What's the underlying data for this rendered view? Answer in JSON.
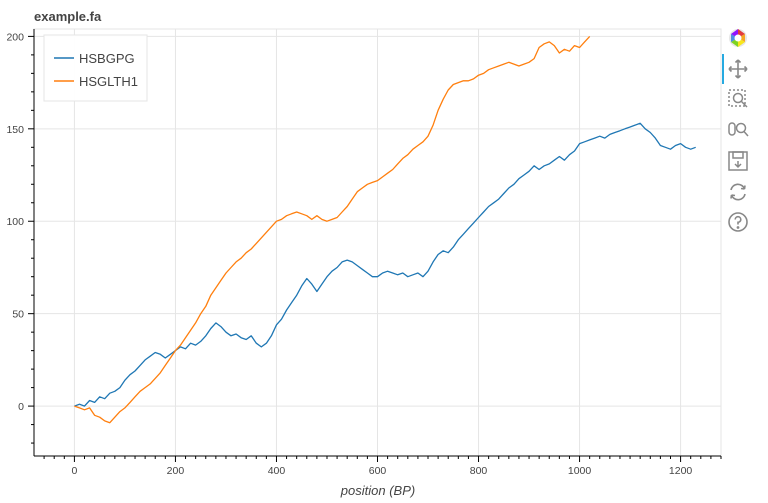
{
  "title": "example.fa",
  "toolbar": {
    "tools": [
      {
        "name": "bokeh-logo-icon"
      },
      {
        "name": "pan-tool-icon"
      },
      {
        "name": "box-zoom-tool-icon"
      },
      {
        "name": "wheel-zoom-tool-icon"
      },
      {
        "name": "save-tool-icon"
      },
      {
        "name": "reset-tool-icon"
      },
      {
        "name": "help-tool-icon"
      }
    ]
  },
  "chart_data": {
    "type": "line",
    "title": "example.fa",
    "xlabel": "position (BP)",
    "ylabel": "",
    "xlim": [
      -80,
      1280
    ],
    "ylim": [
      -27,
      204
    ],
    "xticks": [
      0,
      200,
      400,
      600,
      800,
      1000,
      1200
    ],
    "yticks": [
      0,
      50,
      100,
      150,
      200
    ],
    "grid": true,
    "legend_position": "top-left",
    "series": [
      {
        "name": "HSBGPG",
        "color": "#1f77b4",
        "x": [
          0,
          10,
          20,
          30,
          40,
          50,
          60,
          70,
          80,
          90,
          100,
          110,
          120,
          130,
          140,
          150,
          160,
          170,
          180,
          190,
          200,
          210,
          220,
          230,
          240,
          250,
          260,
          270,
          280,
          290,
          300,
          310,
          320,
          330,
          340,
          350,
          360,
          370,
          380,
          390,
          400,
          410,
          420,
          430,
          440,
          450,
          460,
          470,
          480,
          490,
          500,
          510,
          520,
          530,
          540,
          550,
          560,
          570,
          580,
          590,
          600,
          610,
          620,
          630,
          640,
          650,
          660,
          670,
          680,
          690,
          700,
          710,
          720,
          730,
          740,
          750,
          760,
          770,
          780,
          790,
          800,
          810,
          820,
          830,
          840,
          850,
          860,
          870,
          880,
          890,
          900,
          910,
          920,
          930,
          940,
          950,
          960,
          970,
          980,
          990,
          1000,
          1010,
          1020,
          1030,
          1040,
          1050,
          1060,
          1070,
          1080,
          1090,
          1100,
          1110,
          1120,
          1130,
          1140,
          1150,
          1160,
          1170,
          1180,
          1190,
          1200,
          1210,
          1220,
          1230
        ],
        "y": [
          0,
          1,
          0,
          3,
          2,
          5,
          4,
          7,
          8,
          10,
          14,
          17,
          19,
          22,
          25,
          27,
          29,
          28,
          26,
          28,
          30,
          32,
          31,
          34,
          33,
          35,
          38,
          42,
          45,
          43,
          40,
          38,
          39,
          37,
          36,
          38,
          34,
          32,
          34,
          38,
          44,
          47,
          52,
          56,
          60,
          65,
          69,
          66,
          62,
          66,
          70,
          73,
          75,
          78,
          79,
          78,
          76,
          74,
          72,
          70,
          70,
          72,
          73,
          72,
          71,
          72,
          70,
          71,
          72,
          70,
          73,
          78,
          82,
          84,
          83,
          86,
          90,
          93,
          96,
          99,
          102,
          105,
          108,
          110,
          112,
          115,
          118,
          120,
          123,
          125,
          127,
          130,
          128,
          130,
          131,
          133,
          135,
          133,
          136,
          138,
          142,
          143,
          144,
          145,
          146,
          145,
          147,
          148,
          149,
          150,
          151,
          152,
          153,
          150,
          148,
          145,
          141,
          140,
          139,
          141,
          142,
          140,
          139,
          140
        ]
      },
      {
        "name": "HSGLTH1",
        "color": "#ff7f0e",
        "x": [
          0,
          10,
          20,
          30,
          40,
          50,
          60,
          70,
          80,
          90,
          100,
          110,
          120,
          130,
          140,
          150,
          160,
          170,
          180,
          190,
          200,
          210,
          220,
          230,
          240,
          250,
          260,
          270,
          280,
          290,
          300,
          310,
          320,
          330,
          340,
          350,
          360,
          370,
          380,
          390,
          400,
          410,
          420,
          430,
          440,
          450,
          460,
          470,
          480,
          490,
          500,
          510,
          520,
          530,
          540,
          550,
          560,
          570,
          580,
          590,
          600,
          610,
          620,
          630,
          640,
          650,
          660,
          670,
          680,
          690,
          700,
          710,
          720,
          730,
          740,
          750,
          760,
          770,
          780,
          790,
          800,
          810,
          820,
          830,
          840,
          850,
          860,
          870,
          880,
          890,
          900,
          910,
          920,
          930,
          940,
          950,
          960,
          970,
          980,
          990,
          1000,
          1010,
          1020
        ],
        "y": [
          0,
          -1,
          -2,
          -1,
          -5,
          -6,
          -8,
          -9,
          -6,
          -3,
          -1,
          2,
          5,
          8,
          10,
          12,
          15,
          18,
          22,
          26,
          30,
          33,
          37,
          41,
          45,
          50,
          54,
          60,
          64,
          68,
          72,
          75,
          78,
          80,
          83,
          85,
          88,
          91,
          94,
          97,
          100,
          101,
          103,
          104,
          105,
          104,
          103,
          101,
          103,
          101,
          100,
          101,
          102,
          105,
          108,
          112,
          116,
          118,
          120,
          121,
          122,
          124,
          126,
          128,
          131,
          134,
          136,
          139,
          141,
          143,
          146,
          152,
          160,
          166,
          171,
          174,
          175,
          176,
          176,
          177,
          179,
          180,
          182,
          183,
          184,
          185,
          186,
          185,
          184,
          185,
          186,
          188,
          194,
          196,
          197,
          195,
          191,
          193,
          192,
          195,
          194,
          197,
          200
        ]
      }
    ]
  }
}
